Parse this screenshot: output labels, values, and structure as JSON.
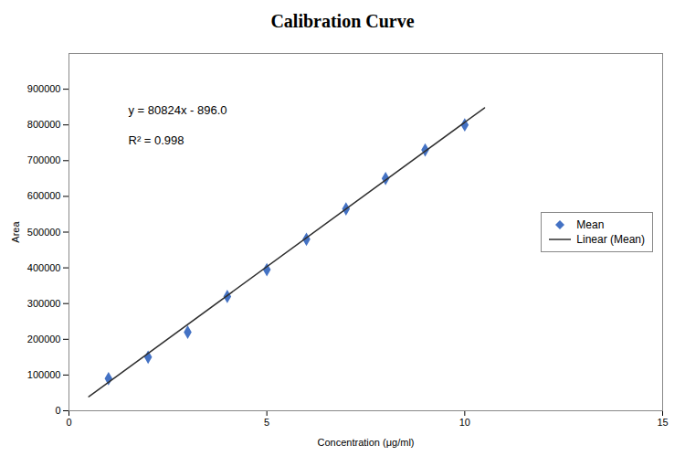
{
  "chart_data": {
    "type": "scatter",
    "title": "Calibration Curve",
    "x_label": "Concentration (μg/ml)",
    "y_label": "Area",
    "series": [
      {
        "name": "Mean",
        "type": "scatter",
        "color": "#4472C4",
        "marker": "diamond",
        "x": [
          1,
          2,
          3,
          4,
          5,
          6,
          7,
          8,
          9,
          10
        ],
        "values": [
          90000,
          150000,
          220000,
          320000,
          395000,
          480000,
          565000,
          650000,
          730000,
          800000
        ]
      },
      {
        "name": "Linear (Mean)",
        "type": "line",
        "color": "#2f2f2f",
        "x": [
          0.5,
          10.5
        ],
        "values": [
          39516,
          847756
        ]
      }
    ],
    "annotations": [
      {
        "text": "y = 80824x - 896.0",
        "x": 1.5,
        "y": 840000
      },
      {
        "text": "R² = 0.998",
        "x": 1.5,
        "y": 755000
      }
    ],
    "xlim": [
      0,
      15
    ],
    "ylim": [
      0,
      1000000
    ],
    "xticks": [
      0,
      5,
      10,
      15
    ],
    "yticks": [
      0,
      100000,
      200000,
      300000,
      400000,
      500000,
      600000,
      700000,
      800000,
      900000
    ],
    "grid": false,
    "legend": "right"
  }
}
